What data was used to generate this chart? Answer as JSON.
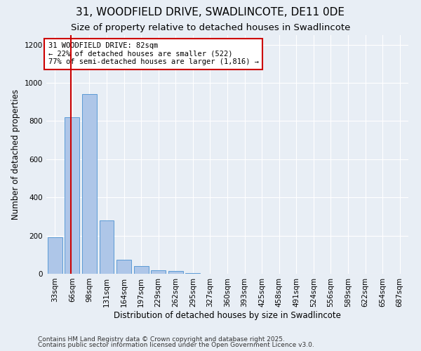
{
  "title1": "31, WOODFIELD DRIVE, SWADLINCOTE, DE11 0DE",
  "title2": "Size of property relative to detached houses in Swadlincote",
  "xlabel": "Distribution of detached houses by size in Swadlincote",
  "ylabel": "Number of detached properties",
  "categories": [
    "33sqm",
    "66sqm",
    "98sqm",
    "131sqm",
    "164sqm",
    "197sqm",
    "229sqm",
    "262sqm",
    "295sqm",
    "327sqm",
    "360sqm",
    "393sqm",
    "425sqm",
    "458sqm",
    "491sqm",
    "524sqm",
    "556sqm",
    "589sqm",
    "622sqm",
    "654sqm",
    "687sqm"
  ],
  "values": [
    190,
    820,
    940,
    280,
    75,
    40,
    20,
    13,
    5,
    0,
    0,
    0,
    0,
    0,
    0,
    0,
    0,
    0,
    0,
    0,
    0
  ],
  "bar_color": "#aec6e8",
  "bar_edge_color": "#5b9bd5",
  "vline_x": 0.92,
  "vline_color": "#cc0000",
  "annotation_text": "31 WOODFIELD DRIVE: 82sqm\n← 22% of detached houses are smaller (522)\n77% of semi-detached houses are larger (1,816) →",
  "annotation_box_color": "#ffffff",
  "annotation_box_edge": "#cc0000",
  "ylim": [
    0,
    1250
  ],
  "yticks": [
    0,
    200,
    400,
    600,
    800,
    1000,
    1200
  ],
  "background_color": "#e8eef5",
  "footer1": "Contains HM Land Registry data © Crown copyright and database right 2025.",
  "footer2": "Contains public sector information licensed under the Open Government Licence v3.0.",
  "title1_fontsize": 11,
  "title2_fontsize": 9.5,
  "xlabel_fontsize": 8.5,
  "ylabel_fontsize": 8.5,
  "tick_fontsize": 7.5,
  "annotation_fontsize": 7.5,
  "footer_fontsize": 6.5
}
